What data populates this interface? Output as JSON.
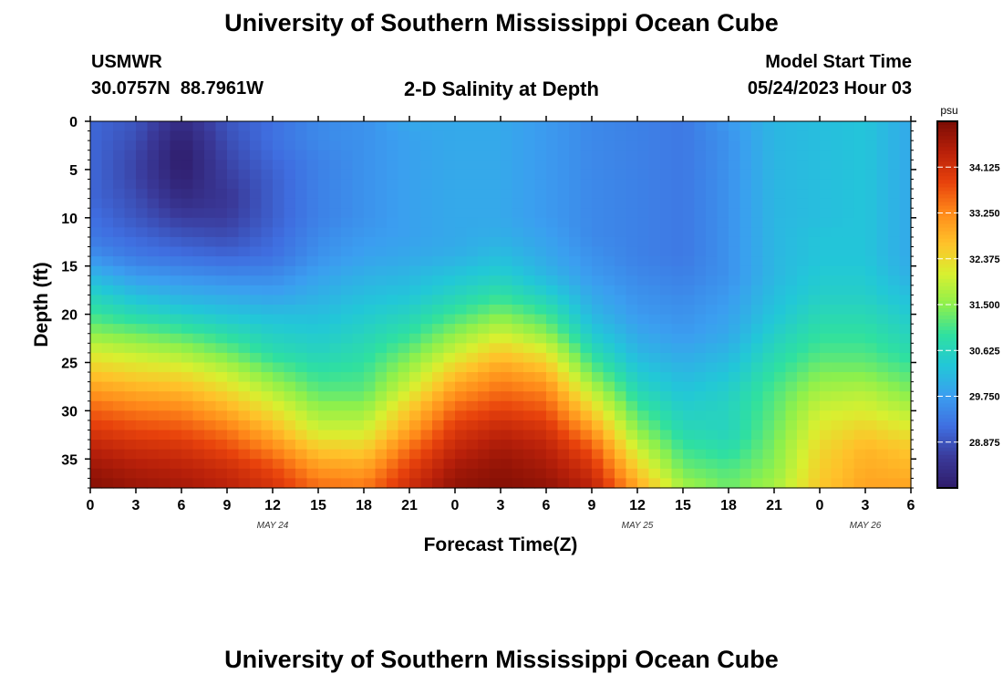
{
  "page": {
    "title": "University of Southern Mississippi Ocean Cube",
    "footer_title": "University of Southern Mississippi Ocean Cube"
  },
  "header": {
    "station": "USMWR",
    "coords": "30.0757N  88.7961W",
    "plot_title": "2-D Salinity at Depth",
    "model_start_label": "Model Start Time",
    "model_start_value": "05/24/2023 Hour 03"
  },
  "chart_data": {
    "type": "heatmap",
    "title": "2-D Salinity at Depth",
    "xlabel": "Forecast Time(Z)",
    "ylabel": "Depth (ft)",
    "x_tick_labels": [
      "0",
      "3",
      "6",
      "9",
      "12",
      "15",
      "18",
      "21",
      "0",
      "3",
      "6",
      "9",
      "12",
      "15",
      "18",
      "21",
      "0",
      "3",
      "6"
    ],
    "x_range_hours": [
      0,
      54
    ],
    "date_labels": [
      {
        "label": "MAY 24",
        "at_hour": 12
      },
      {
        "label": "MAY 25",
        "at_hour": 36
      },
      {
        "label": "MAY 26",
        "at_hour": 51
      }
    ],
    "y_ticks": [
      0,
      5,
      10,
      15,
      20,
      25,
      30,
      35
    ],
    "y_range": [
      0,
      38
    ],
    "colorbar": {
      "unit": "psu",
      "ticks": [
        "34.125",
        "33.250",
        "32.375",
        "31.500",
        "30.625",
        "29.750",
        "28.875"
      ],
      "range": [
        28.0,
        35.0
      ],
      "colors": [
        "#2f1c6a",
        "#3a3a9a",
        "#3f6ee0",
        "#3b9ef0",
        "#22c7d8",
        "#2fe0a0",
        "#8ef04c",
        "#d8f030",
        "#ffc22a",
        "#ff8a1a",
        "#e8420c",
        "#b8200a",
        "#7a0c04"
      ]
    },
    "z_grid_note": "salinity (psu) by depth row (0..38 ft step 2) and forecast hour column (0..54 step 3)",
    "z_hours": [
      0,
      3,
      6,
      9,
      12,
      15,
      18,
      21,
      24,
      27,
      30,
      33,
      36,
      39,
      42,
      45,
      48,
      51,
      54
    ],
    "z_depths": [
      0,
      2,
      4,
      6,
      8,
      10,
      12,
      14,
      16,
      18,
      20,
      22,
      24,
      26,
      28,
      30,
      32,
      34,
      36,
      38
    ],
    "z": [
      [
        29.1,
        28.9,
        28.3,
        28.9,
        29.2,
        29.5,
        29.6,
        29.9,
        29.9,
        29.9,
        29.7,
        29.5,
        29.4,
        29.3,
        29.7,
        30.1,
        30.2,
        30.3,
        29.9
      ],
      [
        29.1,
        28.8,
        28.1,
        28.8,
        29.2,
        29.5,
        29.6,
        29.8,
        29.9,
        29.9,
        29.7,
        29.5,
        29.4,
        29.3,
        29.6,
        30.1,
        30.2,
        30.3,
        29.9
      ],
      [
        29.1,
        28.7,
        28.0,
        28.7,
        29.1,
        29.4,
        29.6,
        29.8,
        29.9,
        29.9,
        29.7,
        29.5,
        29.4,
        29.3,
        29.6,
        30.1,
        30.2,
        30.3,
        29.9
      ],
      [
        29.1,
        28.7,
        28.1,
        28.6,
        29.0,
        29.4,
        29.6,
        29.8,
        29.9,
        29.9,
        29.7,
        29.5,
        29.4,
        29.3,
        29.6,
        30.1,
        30.2,
        30.3,
        29.9
      ],
      [
        29.1,
        28.8,
        28.3,
        28.5,
        29.0,
        29.4,
        29.6,
        29.8,
        29.9,
        29.9,
        29.7,
        29.5,
        29.4,
        29.3,
        29.6,
        30.1,
        30.2,
        30.3,
        29.9
      ],
      [
        29.2,
        28.9,
        28.6,
        28.6,
        29.0,
        29.4,
        29.6,
        29.8,
        29.9,
        29.9,
        29.7,
        29.5,
        29.4,
        29.3,
        29.6,
        30.1,
        30.2,
        30.3,
        29.9
      ],
      [
        29.3,
        29.1,
        28.9,
        28.8,
        29.1,
        29.5,
        29.7,
        29.8,
        29.9,
        30.0,
        29.8,
        29.5,
        29.4,
        29.3,
        29.6,
        30.1,
        30.3,
        30.3,
        29.9
      ],
      [
        29.6,
        29.3,
        29.2,
        29.1,
        29.2,
        29.6,
        29.8,
        29.9,
        30.0,
        30.2,
        29.9,
        29.6,
        29.4,
        29.3,
        29.6,
        30.1,
        30.3,
        30.3,
        29.9
      ],
      [
        30.1,
        29.7,
        29.6,
        29.5,
        29.5,
        29.8,
        30.0,
        30.1,
        30.3,
        30.5,
        30.1,
        29.7,
        29.5,
        29.4,
        29.6,
        30.1,
        30.4,
        30.4,
        30.0
      ],
      [
        30.6,
        30.2,
        30.0,
        29.9,
        29.8,
        30.0,
        30.2,
        30.3,
        30.6,
        30.9,
        30.5,
        29.9,
        29.6,
        29.5,
        29.7,
        30.2,
        30.5,
        30.5,
        30.2
      ],
      [
        31.0,
        30.7,
        30.5,
        30.3,
        30.2,
        30.2,
        30.4,
        30.6,
        31.0,
        31.4,
        31.0,
        30.1,
        29.7,
        29.6,
        29.8,
        30.3,
        30.7,
        30.7,
        30.4
      ],
      [
        31.5,
        31.3,
        31.1,
        30.8,
        30.5,
        30.4,
        30.6,
        30.9,
        31.5,
        32.0,
        31.5,
        30.4,
        29.9,
        29.7,
        29.9,
        30.5,
        30.9,
        30.9,
        30.6
      ],
      [
        32.1,
        31.9,
        31.7,
        31.3,
        30.8,
        30.6,
        30.8,
        31.3,
        32.0,
        32.6,
        32.2,
        30.8,
        30.1,
        29.9,
        30.1,
        30.7,
        31.1,
        31.1,
        30.8
      ],
      [
        32.6,
        32.4,
        32.3,
        31.9,
        31.3,
        30.9,
        31.0,
        31.7,
        32.6,
        33.1,
        32.8,
        31.3,
        30.4,
        30.1,
        30.3,
        30.9,
        31.4,
        31.4,
        31.1
      ],
      [
        33.1,
        32.9,
        32.8,
        32.4,
        31.8,
        31.2,
        31.2,
        32.1,
        33.1,
        33.5,
        33.3,
        31.9,
        30.7,
        30.3,
        30.5,
        31.1,
        31.7,
        31.8,
        31.4
      ],
      [
        33.6,
        33.4,
        33.3,
        32.9,
        32.3,
        31.6,
        31.6,
        32.6,
        33.6,
        33.9,
        33.7,
        32.5,
        31.1,
        30.5,
        30.6,
        31.2,
        32.0,
        32.1,
        31.8
      ],
      [
        34.0,
        33.8,
        33.7,
        33.4,
        32.8,
        32.0,
        32.0,
        33.0,
        34.0,
        34.3,
        34.1,
        33.1,
        31.5,
        30.7,
        30.6,
        31.3,
        32.2,
        32.5,
        32.2
      ],
      [
        34.4,
        34.2,
        34.1,
        33.8,
        33.3,
        32.6,
        32.5,
        33.5,
        34.3,
        34.6,
        34.4,
        33.7,
        32.0,
        31.0,
        30.8,
        31.4,
        32.4,
        32.8,
        32.6
      ],
      [
        34.7,
        34.5,
        34.4,
        34.2,
        33.8,
        33.1,
        33.0,
        33.9,
        34.6,
        34.8,
        34.6,
        34.1,
        32.5,
        31.3,
        31.1,
        31.5,
        32.5,
        32.9,
        32.8
      ],
      [
        34.9,
        34.7,
        34.6,
        34.4,
        34.1,
        33.5,
        33.4,
        34.2,
        34.8,
        34.9,
        34.8,
        34.4,
        33.0,
        31.7,
        31.3,
        31.7,
        32.6,
        33.0,
        33.0
      ]
    ]
  }
}
